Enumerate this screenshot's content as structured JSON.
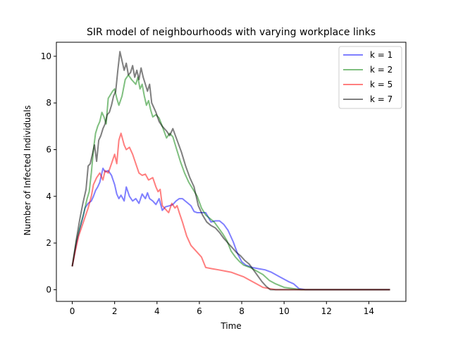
{
  "chart_data": {
    "type": "line",
    "title": "SIR model of neighbourhoods with varying workplace links",
    "xlabel": "Time",
    "ylabel": "Number of Infected Individuals",
    "xlim": [
      -0.75,
      15.75
    ],
    "ylim": [
      -0.5,
      10.6
    ],
    "xticks": [
      0,
      2,
      4,
      6,
      8,
      10,
      12,
      14
    ],
    "yticks": [
      0,
      2,
      4,
      6,
      8,
      10
    ],
    "grid": false,
    "legend_position": "top-right",
    "series": [
      {
        "name": "k = 1",
        "color": "#0000ff",
        "x": [
          0,
          0.2,
          0.35,
          0.5,
          0.6,
          0.75,
          0.9,
          1.0,
          1.1,
          1.2,
          1.3,
          1.4,
          1.45,
          1.55,
          1.7,
          1.85,
          2.0,
          2.1,
          2.2,
          2.3,
          2.45,
          2.55,
          2.7,
          2.85,
          3.0,
          3.15,
          3.3,
          3.45,
          3.55,
          3.65,
          3.8,
          3.95,
          4.1,
          4.25,
          4.4,
          4.6,
          4.75,
          4.9,
          5.05,
          5.2,
          5.4,
          5.6,
          5.75,
          5.9,
          6.05,
          6.3,
          6.55,
          6.75,
          6.95,
          7.15,
          7.35,
          7.6,
          7.8,
          8.0,
          8.2,
          8.5,
          8.8,
          9.1,
          9.4,
          9.8,
          10.2,
          10.45,
          10.7,
          11.0,
          11.5,
          12.0,
          13.0,
          14.0,
          15.0
        ],
        "y": [
          1.0,
          2.0,
          2.6,
          3.1,
          3.5,
          3.7,
          3.8,
          4.0,
          4.25,
          4.4,
          4.6,
          5.0,
          5.2,
          5.05,
          5.1,
          4.9,
          4.5,
          4.1,
          3.9,
          4.05,
          3.8,
          4.4,
          4.0,
          3.8,
          3.9,
          3.7,
          4.1,
          3.9,
          4.15,
          3.9,
          3.8,
          3.65,
          3.9,
          3.4,
          3.55,
          3.6,
          3.65,
          3.8,
          3.9,
          3.9,
          3.75,
          3.6,
          3.35,
          3.3,
          3.3,
          3.3,
          2.9,
          2.95,
          2.95,
          2.8,
          2.55,
          2.05,
          1.55,
          1.2,
          1.05,
          0.95,
          0.9,
          0.85,
          0.75,
          0.55,
          0.35,
          0.25,
          0.05,
          0.0,
          0.0,
          0.0,
          0.0,
          0.0,
          0.0
        ]
      },
      {
        "name": "k = 2",
        "color": "#008000",
        "x": [
          0,
          0.2,
          0.4,
          0.55,
          0.7,
          0.8,
          0.9,
          1.0,
          1.1,
          1.2,
          1.3,
          1.4,
          1.5,
          1.6,
          1.7,
          1.8,
          1.9,
          2.0,
          2.1,
          2.2,
          2.35,
          2.5,
          2.65,
          2.8,
          2.9,
          3.0,
          3.1,
          3.2,
          3.3,
          3.4,
          3.5,
          3.6,
          3.7,
          3.8,
          3.95,
          4.1,
          4.25,
          4.45,
          4.6,
          4.75,
          4.9,
          5.1,
          5.3,
          5.5,
          5.7,
          5.9,
          6.1,
          6.3,
          6.5,
          6.7,
          6.9,
          7.1,
          7.3,
          7.5,
          7.7,
          7.9,
          8.1,
          8.4,
          8.7,
          9.0,
          9.3,
          9.6,
          10.0,
          10.4,
          10.8,
          11.2,
          12.0,
          13.0,
          14.0,
          15.0
        ],
        "y": [
          1.0,
          2.1,
          2.8,
          3.3,
          3.9,
          4.2,
          5.0,
          6.0,
          6.7,
          7.0,
          7.2,
          7.6,
          7.4,
          7.1,
          8.2,
          8.35,
          8.5,
          8.6,
          8.2,
          7.9,
          8.3,
          9.0,
          9.2,
          9.0,
          8.9,
          8.8,
          9.1,
          8.6,
          8.8,
          8.3,
          7.9,
          8.1,
          7.7,
          7.4,
          7.5,
          7.35,
          7.0,
          6.5,
          6.7,
          6.55,
          6.1,
          5.5,
          5.0,
          4.6,
          4.3,
          4.0,
          3.5,
          3.2,
          3.05,
          2.9,
          2.65,
          2.4,
          2.1,
          1.65,
          1.4,
          1.2,
          1.05,
          0.95,
          0.8,
          0.65,
          0.4,
          0.25,
          0.1,
          0.05,
          0.0,
          0.0,
          0.0,
          0.0,
          0.0,
          0.0
        ]
      },
      {
        "name": "k = 5",
        "color": "#ff0000",
        "x": [
          0,
          0.15,
          0.3,
          0.45,
          0.6,
          0.75,
          0.9,
          1.0,
          1.15,
          1.3,
          1.45,
          1.55,
          1.7,
          1.85,
          2.0,
          2.1,
          2.2,
          2.3,
          2.45,
          2.55,
          2.7,
          2.85,
          3.0,
          3.15,
          3.3,
          3.45,
          3.6,
          3.8,
          3.95,
          4.05,
          4.15,
          4.25,
          4.35,
          4.45,
          4.55,
          4.7,
          4.85,
          4.95,
          5.05,
          5.2,
          5.4,
          5.6,
          5.8,
          6.0,
          6.1,
          6.3,
          6.6,
          6.9,
          7.2,
          7.5,
          7.8,
          8.1,
          8.4,
          8.7,
          9.0,
          9.3,
          9.6,
          10.0,
          10.5,
          11.0,
          12.0,
          13.0,
          14.0,
          15.0
        ],
        "y": [
          1.0,
          1.7,
          2.3,
          2.7,
          3.1,
          3.5,
          4.0,
          4.5,
          4.8,
          5.0,
          4.7,
          5.1,
          5.0,
          5.4,
          5.8,
          5.4,
          6.4,
          6.7,
          6.2,
          6.0,
          6.1,
          5.8,
          5.4,
          5.0,
          4.9,
          4.95,
          4.7,
          4.8,
          4.4,
          4.2,
          4.3,
          3.6,
          3.5,
          3.4,
          3.3,
          3.7,
          3.5,
          3.6,
          3.3,
          2.9,
          2.3,
          1.9,
          1.7,
          1.5,
          1.4,
          0.95,
          0.9,
          0.85,
          0.8,
          0.75,
          0.65,
          0.55,
          0.4,
          0.25,
          0.1,
          0.05,
          0.0,
          0.0,
          0.0,
          0.0,
          0.0,
          0.0,
          0.0,
          0.0
        ]
      },
      {
        "name": "k = 7",
        "color": "#000000",
        "x": [
          0,
          0.2,
          0.35,
          0.5,
          0.65,
          0.75,
          0.85,
          0.95,
          1.05,
          1.15,
          1.25,
          1.35,
          1.45,
          1.55,
          1.65,
          1.75,
          1.85,
          1.95,
          2.05,
          2.15,
          2.25,
          2.35,
          2.45,
          2.55,
          2.65,
          2.75,
          2.85,
          2.95,
          3.05,
          3.15,
          3.25,
          3.35,
          3.45,
          3.55,
          3.65,
          3.75,
          3.85,
          3.95,
          4.1,
          4.25,
          4.45,
          4.6,
          4.75,
          4.95,
          5.15,
          5.35,
          5.55,
          5.75,
          5.95,
          6.15,
          6.35,
          6.55,
          6.75,
          6.95,
          7.15,
          7.35,
          7.55,
          7.75,
          7.95,
          8.15,
          8.35,
          8.55,
          8.75,
          8.95,
          9.15,
          9.35,
          9.6,
          10.0,
          11.0,
          12.0,
          13.0,
          14.0,
          15.0
        ],
        "y": [
          1.0,
          2.2,
          3.0,
          3.7,
          4.3,
          5.3,
          5.4,
          5.8,
          6.2,
          5.5,
          6.4,
          6.6,
          6.9,
          7.1,
          7.5,
          7.6,
          7.9,
          8.3,
          8.5,
          9.4,
          10.2,
          9.8,
          9.4,
          9.7,
          9.2,
          9.3,
          9.6,
          9.1,
          9.4,
          9.0,
          9.5,
          9.1,
          8.8,
          8.5,
          8.8,
          8.0,
          7.8,
          7.6,
          7.2,
          7.0,
          6.8,
          6.6,
          6.9,
          6.4,
          5.9,
          5.3,
          4.8,
          4.4,
          3.6,
          3.2,
          2.9,
          2.75,
          2.65,
          2.45,
          2.2,
          2.0,
          1.8,
          1.6,
          1.45,
          1.25,
          1.1,
          0.85,
          0.6,
          0.35,
          0.15,
          0.0,
          0.0,
          0.0,
          0.0,
          0.0,
          0.0,
          0.0,
          0.0
        ]
      }
    ]
  }
}
